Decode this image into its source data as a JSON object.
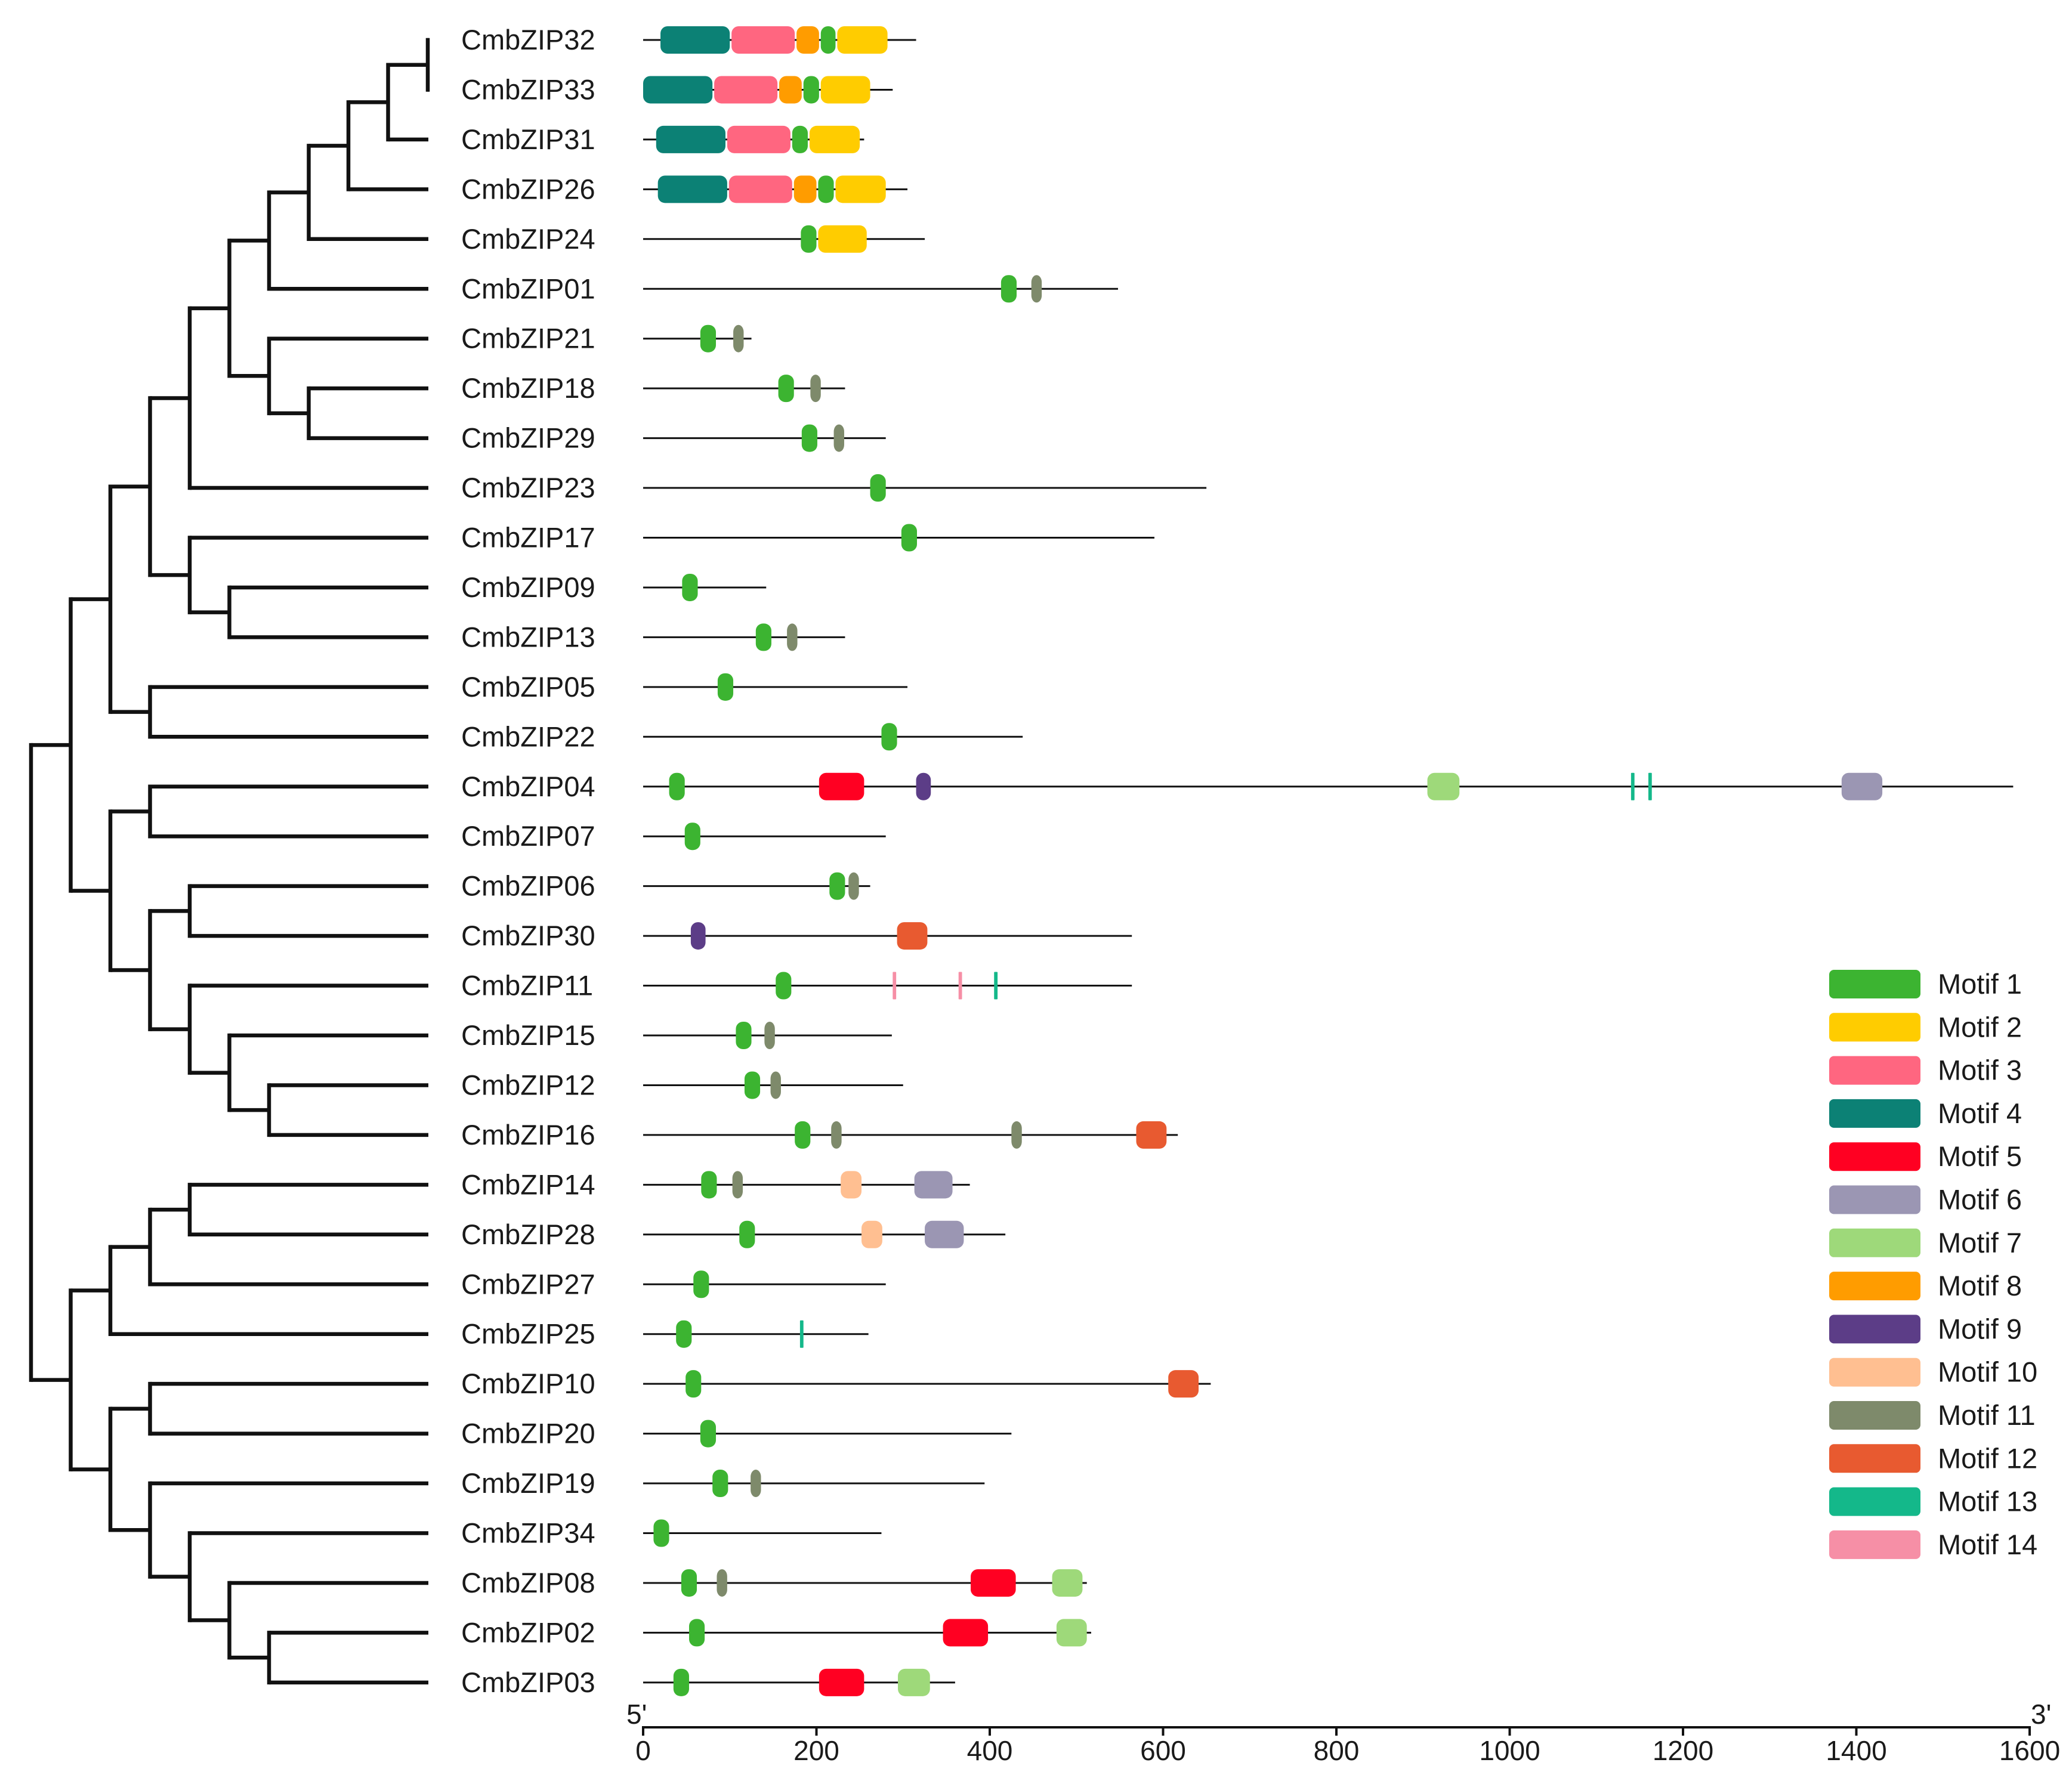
{
  "chart_data": {
    "type": "gene-motif-diagram",
    "axis": {
      "min": 0,
      "max": 1600,
      "ticks": [
        0,
        200,
        400,
        600,
        800,
        1000,
        1200,
        1400,
        1600
      ],
      "tick_labels": [
        "0",
        "200",
        "400",
        "600",
        "800",
        "1000",
        "1200",
        "1400",
        "1600"
      ],
      "start_label": "5'",
      "end_label": "3'"
    },
    "tree_newick": "(((((((((((CmbZIP32,CmbZIP33),CmbZIP31),CmbZIP26),CmbZIP24),CmbZIP01),(CmbZIP21,(CmbZIP18,CmbZIP29))),CmbZIP23),(CmbZIP17,(CmbZIP09,CmbZIP13))),(CmbZIP05,CmbZIP22)),((CmbZIP04,CmbZIP07),((CmbZIP06,CmbZIP30),(CmbZIP11,(CmbZIP15,(CmbZIP12,CmbZIP16)))))),((((CmbZIP14,CmbZIP28),CmbZIP27),CmbZIP25),((CmbZIP10,CmbZIP20),(CmbZIP19,(CmbZIP34,(CmbZIP08,(CmbZIP02,CmbZIP03)))))))",
    "motifs": [
      {
        "id": 1,
        "name": "Motif 1",
        "color": "#3cb431"
      },
      {
        "id": 2,
        "name": "Motif 2",
        "color": "#ffcc00"
      },
      {
        "id": 3,
        "name": "Motif 3",
        "color": "#ff6680"
      },
      {
        "id": 4,
        "name": "Motif 4",
        "color": "#0c8175"
      },
      {
        "id": 5,
        "name": "Motif 5",
        "color": "#ff0022"
      },
      {
        "id": 6,
        "name": "Motif 6",
        "color": "#9b96b3"
      },
      {
        "id": 7,
        "name": "Motif 7",
        "color": "#9ed97a"
      },
      {
        "id": 8,
        "name": "Motif 8",
        "color": "#ff9c00"
      },
      {
        "id": 9,
        "name": "Motif 9",
        "color": "#5c3d87"
      },
      {
        "id": 10,
        "name": "Motif 10",
        "color": "#ffbf91"
      },
      {
        "id": 11,
        "name": "Motif 11",
        "color": "#7e8a6b"
      },
      {
        "id": 12,
        "name": "Motif 12",
        "color": "#e85a30"
      },
      {
        "id": 13,
        "name": "Motif 13",
        "color": "#14b88a"
      },
      {
        "id": 14,
        "name": "Motif 14",
        "color": "#f68fa6"
      }
    ],
    "genes": [
      {
        "name": "CmbZIP32",
        "length": 315,
        "motifs": [
          [
            4,
            20,
            100
          ],
          [
            3,
            102,
            175
          ],
          [
            8,
            177,
            203
          ],
          [
            1,
            205,
            222
          ],
          [
            2,
            224,
            282
          ]
        ]
      },
      {
        "name": "CmbZIP33",
        "length": 288,
        "motifs": [
          [
            4,
            0,
            80
          ],
          [
            3,
            82,
            155
          ],
          [
            8,
            157,
            183
          ],
          [
            1,
            185,
            203
          ],
          [
            2,
            205,
            262
          ]
        ]
      },
      {
        "name": "CmbZIP31",
        "length": 255,
        "motifs": [
          [
            4,
            15,
            95
          ],
          [
            3,
            97,
            170
          ],
          [
            1,
            172,
            190
          ],
          [
            2,
            192,
            250
          ]
        ]
      },
      {
        "name": "CmbZIP26",
        "length": 305,
        "motifs": [
          [
            4,
            17,
            97
          ],
          [
            3,
            99,
            172
          ],
          [
            8,
            174,
            200
          ],
          [
            1,
            202,
            220
          ],
          [
            2,
            222,
            280
          ]
        ]
      },
      {
        "name": "CmbZIP24",
        "length": 325,
        "motifs": [
          [
            1,
            182,
            200
          ],
          [
            2,
            202,
            258
          ]
        ]
      },
      {
        "name": "CmbZIP01",
        "length": 548,
        "motifs": [
          [
            1,
            413,
            431
          ],
          [
            11,
            448,
            460
          ]
        ]
      },
      {
        "name": "CmbZIP21",
        "length": 125,
        "motifs": [
          [
            1,
            66,
            84
          ],
          [
            11,
            104,
            116
          ]
        ]
      },
      {
        "name": "CmbZIP18",
        "length": 233,
        "motifs": [
          [
            1,
            156,
            174
          ],
          [
            11,
            193,
            205
          ]
        ]
      },
      {
        "name": "CmbZIP29",
        "length": 280,
        "motifs": [
          [
            1,
            183,
            201
          ],
          [
            11,
            220,
            232
          ]
        ]
      },
      {
        "name": "CmbZIP23",
        "length": 650,
        "motifs": [
          [
            1,
            262,
            280
          ]
        ]
      },
      {
        "name": "CmbZIP17",
        "length": 590,
        "motifs": [
          [
            1,
            298,
            316
          ]
        ]
      },
      {
        "name": "CmbZIP09",
        "length": 142,
        "motifs": [
          [
            1,
            45,
            63
          ]
        ]
      },
      {
        "name": "CmbZIP13",
        "length": 233,
        "motifs": [
          [
            1,
            130,
            148
          ],
          [
            11,
            166,
            178
          ]
        ]
      },
      {
        "name": "CmbZIP05",
        "length": 305,
        "motifs": [
          [
            1,
            86,
            104
          ]
        ]
      },
      {
        "name": "CmbZIP22",
        "length": 438,
        "motifs": [
          [
            1,
            275,
            293
          ]
        ]
      },
      {
        "name": "CmbZIP04",
        "length": 1581,
        "motifs": [
          [
            1,
            30,
            48
          ],
          [
            5,
            203,
            255
          ],
          [
            9,
            315,
            332
          ],
          [
            7,
            905,
            942
          ],
          [
            13,
            1140,
            1144
          ],
          [
            13,
            1160,
            1164
          ],
          [
            6,
            1383,
            1430
          ]
        ]
      },
      {
        "name": "CmbZIP07",
        "length": 280,
        "motifs": [
          [
            1,
            48,
            66
          ]
        ]
      },
      {
        "name": "CmbZIP06",
        "length": 262,
        "motifs": [
          [
            1,
            215,
            233
          ],
          [
            11,
            237,
            249
          ]
        ]
      },
      {
        "name": "CmbZIP30",
        "length": 564,
        "motifs": [
          [
            9,
            55,
            72
          ],
          [
            12,
            293,
            328
          ]
        ]
      },
      {
        "name": "CmbZIP11",
        "length": 564,
        "motifs": [
          [
            1,
            153,
            171
          ],
          [
            14,
            288,
            292
          ],
          [
            14,
            364,
            368
          ],
          [
            13,
            405,
            409
          ]
        ]
      },
      {
        "name": "CmbZIP15",
        "length": 287,
        "motifs": [
          [
            1,
            107,
            125
          ],
          [
            11,
            140,
            152
          ]
        ]
      },
      {
        "name": "CmbZIP12",
        "length": 300,
        "motifs": [
          [
            1,
            117,
            135
          ],
          [
            11,
            147,
            159
          ]
        ]
      },
      {
        "name": "CmbZIP16",
        "length": 617,
        "motifs": [
          [
            1,
            175,
            193
          ],
          [
            11,
            217,
            229
          ],
          [
            11,
            425,
            437
          ],
          [
            12,
            569,
            604
          ]
        ]
      },
      {
        "name": "CmbZIP14",
        "length": 377,
        "motifs": [
          [
            1,
            67,
            85
          ],
          [
            11,
            103,
            115
          ],
          [
            10,
            228,
            252
          ],
          [
            6,
            313,
            357
          ]
        ]
      },
      {
        "name": "CmbZIP28",
        "length": 418,
        "motifs": [
          [
            1,
            111,
            129
          ],
          [
            10,
            252,
            276
          ],
          [
            6,
            325,
            370
          ]
        ]
      },
      {
        "name": "CmbZIP27",
        "length": 280,
        "motifs": [
          [
            1,
            58,
            76
          ]
        ]
      },
      {
        "name": "CmbZIP25",
        "length": 260,
        "motifs": [
          [
            1,
            38,
            56
          ],
          [
            13,
            181,
            185
          ]
        ]
      },
      {
        "name": "CmbZIP10",
        "length": 655,
        "motifs": [
          [
            1,
            49,
            67
          ],
          [
            12,
            606,
            641
          ]
        ]
      },
      {
        "name": "CmbZIP20",
        "length": 425,
        "motifs": [
          [
            1,
            66,
            84
          ]
        ]
      },
      {
        "name": "CmbZIP19",
        "length": 394,
        "motifs": [
          [
            1,
            80,
            98
          ],
          [
            11,
            124,
            136
          ]
        ]
      },
      {
        "name": "CmbZIP34",
        "length": 275,
        "motifs": [
          [
            1,
            12,
            30
          ]
        ]
      },
      {
        "name": "CmbZIP08",
        "length": 512,
        "motifs": [
          [
            1,
            44,
            62
          ],
          [
            11,
            85,
            97
          ],
          [
            5,
            378,
            430
          ],
          [
            7,
            472,
            507
          ]
        ]
      },
      {
        "name": "CmbZIP02",
        "length": 517,
        "motifs": [
          [
            1,
            53,
            71
          ],
          [
            5,
            346,
            398
          ],
          [
            7,
            477,
            512
          ]
        ]
      },
      {
        "name": "CmbZIP03",
        "length": 360,
        "motifs": [
          [
            1,
            35,
            53
          ],
          [
            5,
            203,
            255
          ],
          [
            7,
            294,
            331
          ]
        ]
      }
    ]
  }
}
